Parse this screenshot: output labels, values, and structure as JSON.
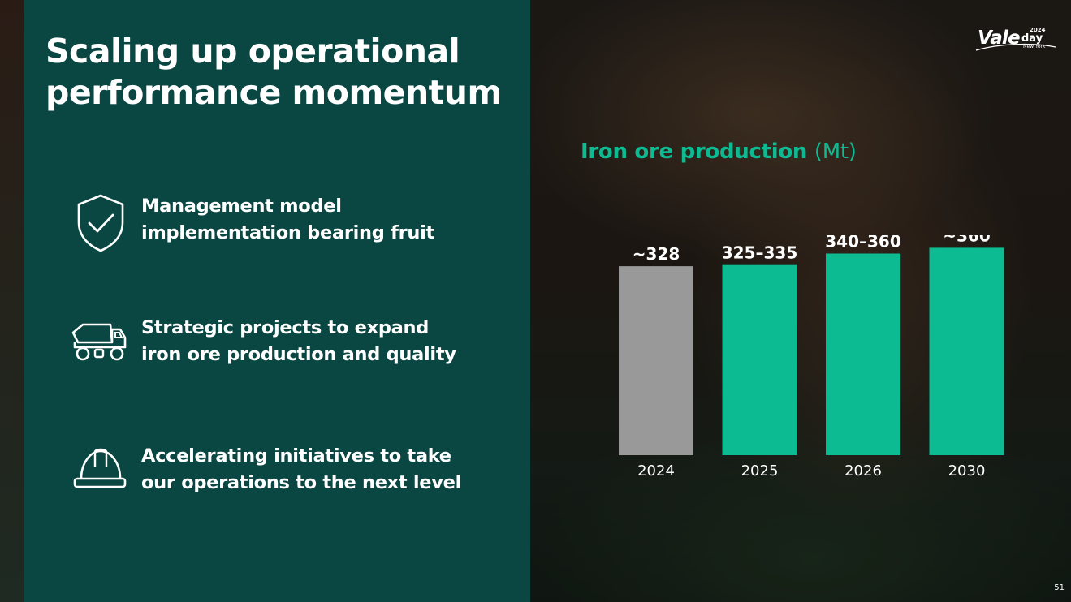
{
  "slide": {
    "title_lines": [
      "Scaling up operational",
      "performance momentum"
    ],
    "page_number": "51"
  },
  "logo": {
    "brand": "Vale",
    "day": "day",
    "year": "2024",
    "city": "New York"
  },
  "features": [
    {
      "icon": "shield-check-icon",
      "lines": [
        "Management model",
        "implementation bearing fruit"
      ]
    },
    {
      "icon": "mining-truck-icon",
      "lines": [
        "Strategic projects to expand",
        "iron ore production and quality"
      ]
    },
    {
      "icon": "hard-hat-icon",
      "lines": [
        "Accelerating initiatives to take",
        "our operations to the next level"
      ]
    }
  ],
  "colors": {
    "panel": "#0a4743",
    "accent": "#0dbb93",
    "bar_historic": "#999999",
    "bar_guidance": "#0dbb93",
    "text": "#ffffff"
  },
  "chart_data": {
    "type": "bar",
    "title": "Iron ore production",
    "title_unit": "(Mt)",
    "categories": [
      "2024",
      "2025",
      "2026",
      "2030"
    ],
    "values": [
      328,
      330,
      350,
      360
    ],
    "data_labels": [
      "~328",
      "325–335",
      "340–360",
      "~360"
    ],
    "bar_colors": [
      "#999999",
      "#0dbb93",
      "#0dbb93",
      "#0dbb93"
    ],
    "ylim": [
      0,
      400
    ],
    "grid": false,
    "legend": "none"
  }
}
